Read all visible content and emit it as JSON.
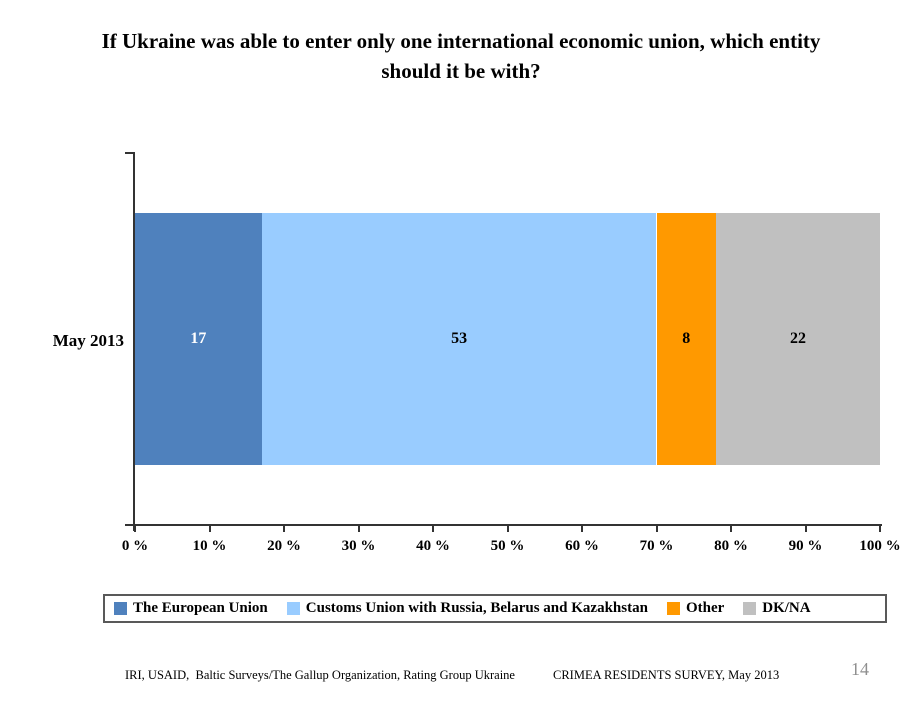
{
  "header": {
    "title_line1": "If Ukraine was able to enter only one international economic union, which entity",
    "title_line2": "should it be with?"
  },
  "chart_data": {
    "type": "bar",
    "subtype": "horizontal-stacked",
    "title": "If Ukraine was able to enter only one international economic union, which entity should it be with?",
    "categories": [
      "May 2013"
    ],
    "series": [
      {
        "name": "The European Union",
        "values": [
          17
        ],
        "color": "#4F81BD",
        "label_color": "#FFFFFF"
      },
      {
        "name": "Customs Union with Russia, Belarus and Kazakhstan",
        "values": [
          53
        ],
        "color": "#99CCFF",
        "label_color": "#000000"
      },
      {
        "name": "Other",
        "values": [
          8
        ],
        "color": "#FF9900",
        "label_color": "#000000"
      },
      {
        "name": "DK/NA",
        "values": [
          22
        ],
        "color": "#C0C0C0",
        "label_color": "#000000"
      }
    ],
    "x_axis": {
      "min": 0,
      "max": 100,
      "tick_step": 10,
      "tick_labels": [
        "0 %",
        "10 %",
        "20 %",
        "30 %",
        "40 %",
        "50 %",
        "60 %",
        "70 %",
        "80 %",
        "90 %",
        "100 %"
      ]
    },
    "legend_position": "bottom",
    "grid": false,
    "axis_color": "#333333"
  },
  "footer": {
    "sources": "IRI, USAID,  Baltic Surveys/The Gallup Organization, Rating Group Ukraine",
    "survey": "CRIMEA RESIDENTS SURVEY, May 2013",
    "page_number": "14"
  }
}
